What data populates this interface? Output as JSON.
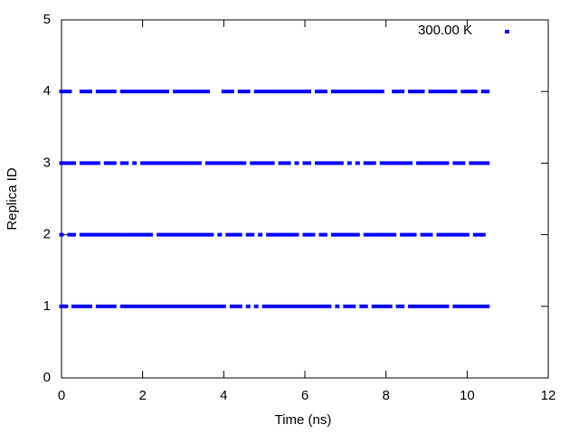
{
  "chart_data": {
    "type": "scatter",
    "xlabel": "Time (ns)",
    "ylabel": "Replica ID",
    "xlim": [
      0,
      12
    ],
    "xticks": [
      0,
      2,
      4,
      6,
      8,
      10,
      12
    ],
    "ylim": [
      0,
      5
    ],
    "yticks": [
      0,
      1,
      2,
      3,
      4,
      5
    ],
    "legend": "top-right",
    "series": [
      {
        "name": "300.00 K",
        "color": "#0000ff",
        "rows": [
          {
            "y": 4,
            "x": [
              0.0,
              0.1,
              0.2,
              0.5,
              0.6,
              0.7,
              0.9,
              1.0,
              1.1,
              1.2,
              1.3,
              1.5,
              1.6,
              1.7,
              1.8,
              1.9,
              2.0,
              2.1,
              2.2,
              2.3,
              2.4,
              2.5,
              2.6,
              2.8,
              2.9,
              3.0,
              3.1,
              3.2,
              3.3,
              3.4,
              3.5,
              3.6,
              4.0,
              4.1,
              4.2,
              4.4,
              4.5,
              4.6,
              4.8,
              4.9,
              5.0,
              5.1,
              5.2,
              5.3,
              5.4,
              5.5,
              5.6,
              5.7,
              5.8,
              5.9,
              6.0,
              6.1,
              6.3,
              6.4,
              6.5,
              6.7,
              6.8,
              6.9,
              7.0,
              7.1,
              7.2,
              7.3,
              7.4,
              7.5,
              7.6,
              7.7,
              7.8,
              7.9,
              8.2,
              8.3,
              8.4,
              8.6,
              8.7,
              8.8,
              8.9,
              9.1,
              9.2,
              9.3,
              9.4,
              9.5,
              9.6,
              9.7,
              9.9,
              10.0,
              10.1,
              10.2,
              10.4,
              10.5
            ]
          },
          {
            "y": 3,
            "x": [
              0.0,
              0.1,
              0.2,
              0.3,
              0.5,
              0.6,
              0.7,
              0.8,
              0.9,
              1.1,
              1.2,
              1.3,
              1.5,
              1.6,
              1.8,
              2.0,
              2.1,
              2.2,
              2.3,
              2.4,
              2.5,
              2.6,
              2.7,
              2.8,
              2.9,
              3.0,
              3.1,
              3.2,
              3.3,
              3.4,
              3.6,
              3.7,
              3.8,
              3.9,
              4.0,
              4.1,
              4.2,
              4.3,
              4.4,
              4.5,
              4.7,
              4.8,
              4.9,
              5.0,
              5.1,
              5.2,
              5.4,
              5.5,
              5.6,
              5.8,
              6.0,
              6.1,
              6.3,
              6.4,
              6.5,
              6.6,
              6.7,
              6.8,
              6.9,
              7.1,
              7.3,
              7.5,
              7.6,
              7.7,
              7.9,
              8.0,
              8.1,
              8.2,
              8.3,
              8.4,
              8.5,
              8.6,
              8.8,
              8.9,
              9.0,
              9.1,
              9.2,
              9.3,
              9.4,
              9.5,
              9.7,
              9.8,
              9.9,
              10.1,
              10.2,
              10.3,
              10.4,
              10.5
            ]
          },
          {
            "y": 2,
            "x": [
              0.0,
              0.2,
              0.3,
              0.5,
              0.6,
              0.7,
              0.8,
              0.9,
              1.0,
              1.1,
              1.2,
              1.3,
              1.4,
              1.5,
              1.6,
              1.7,
              1.8,
              1.9,
              2.0,
              2.1,
              2.2,
              2.4,
              2.5,
              2.6,
              2.7,
              2.8,
              2.9,
              3.0,
              3.1,
              3.2,
              3.3,
              3.4,
              3.5,
              3.6,
              3.7,
              3.9,
              4.1,
              4.2,
              4.3,
              4.4,
              4.6,
              4.7,
              4.9,
              5.1,
              5.2,
              5.3,
              5.4,
              5.5,
              5.6,
              5.7,
              5.8,
              6.0,
              6.1,
              6.2,
              6.4,
              6.5,
              6.7,
              6.8,
              6.9,
              7.0,
              7.1,
              7.2,
              7.3,
              7.5,
              7.6,
              7.7,
              7.8,
              7.9,
              8.0,
              8.1,
              8.2,
              8.4,
              8.5,
              8.6,
              8.7,
              8.9,
              9.0,
              9.1,
              9.3,
              9.4,
              9.5,
              9.6,
              9.7,
              9.8,
              9.9,
              10.0,
              10.2,
              10.3,
              10.4
            ]
          },
          {
            "y": 1,
            "x": [
              0.0,
              0.1,
              0.3,
              0.4,
              0.5,
              0.6,
              0.7,
              0.9,
              1.0,
              1.1,
              1.2,
              1.3,
              1.5,
              1.6,
              1.7,
              1.8,
              1.9,
              2.0,
              2.1,
              2.2,
              2.3,
              2.4,
              2.5,
              2.6,
              2.7,
              2.8,
              2.9,
              3.0,
              3.1,
              3.2,
              3.3,
              3.4,
              3.5,
              3.6,
              3.7,
              3.8,
              3.9,
              4.0,
              4.2,
              4.3,
              4.4,
              4.6,
              4.8,
              5.0,
              5.1,
              5.2,
              5.3,
              5.4,
              5.5,
              5.6,
              5.7,
              5.8,
              5.9,
              6.0,
              6.1,
              6.2,
              6.3,
              6.4,
              6.5,
              6.6,
              6.8,
              7.0,
              7.1,
              7.2,
              7.4,
              7.5,
              7.7,
              7.8,
              7.9,
              8.0,
              8.1,
              8.3,
              8.4,
              8.6,
              8.7,
              8.8,
              8.9,
              9.0,
              9.1,
              9.2,
              9.3,
              9.4,
              9.5,
              9.7,
              9.8,
              9.9,
              10.0,
              10.1,
              10.2,
              10.3,
              10.4,
              10.5
            ]
          }
        ]
      }
    ]
  }
}
